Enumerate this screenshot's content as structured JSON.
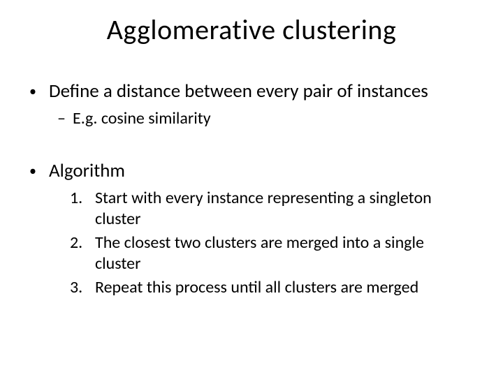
{
  "slide": {
    "title": "Agglomerative clustering",
    "background_color": "#ffffff",
    "text_color": "#000000",
    "title_fontsize": 40,
    "bullets": [
      {
        "level": 1,
        "text": "Define a distance between every pair of instances",
        "sub": [
          {
            "level": 2,
            "text": "E.g. cosine similarity"
          }
        ]
      },
      {
        "level": 1,
        "text": "Algorithm",
        "numbered": [
          {
            "n": "1.",
            "text": "Start with every instance representing a singleton cluster"
          },
          {
            "n": "2.",
            "text": "The closest two clusters are merged into a single cluster"
          },
          {
            "n": "3.",
            "text": "Repeat this process until all clusters are merged"
          }
        ]
      }
    ],
    "body_fontsize_l1": 27,
    "body_fontsize_l2": 24,
    "body_fontsize_num": 24
  }
}
